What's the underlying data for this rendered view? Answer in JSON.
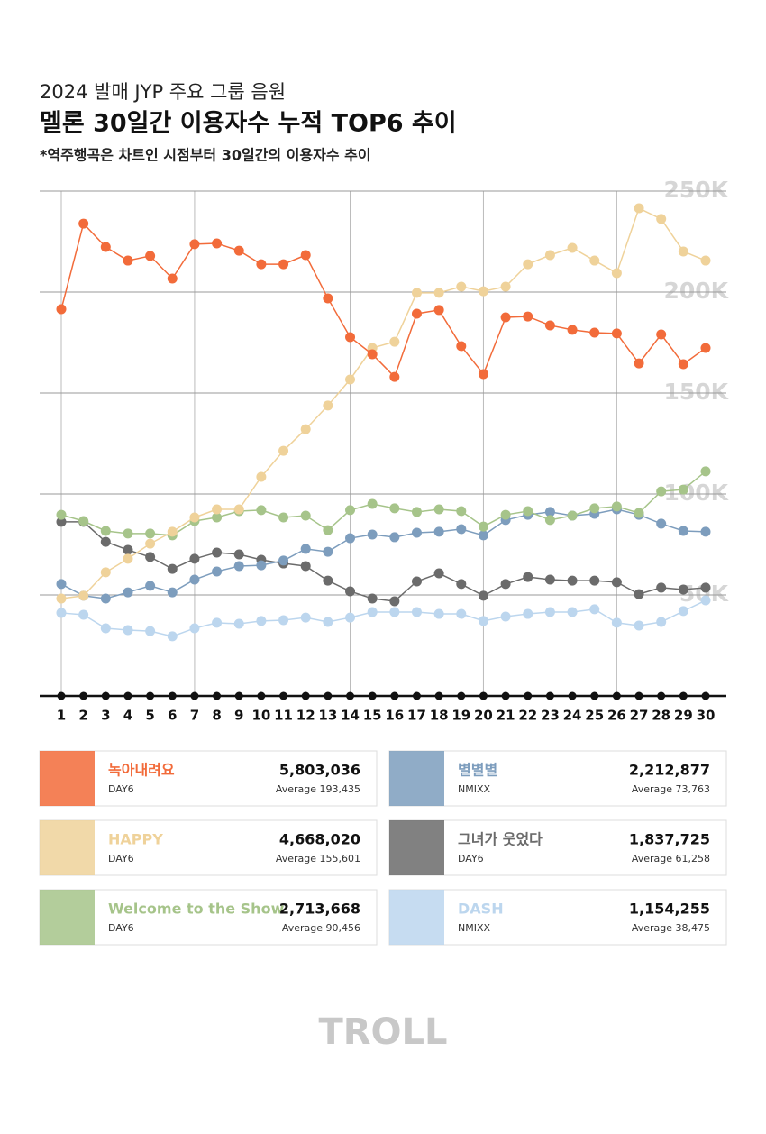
{
  "chart_data": {
    "type": "line",
    "pretitle": "2024 발매 JYP 주요 그룹 음원",
    "title": "멜론 30일간 이용자수 누적 TOP6 추이",
    "subtitle": "*역주행곡은 차트인 시점부터 30일간의 이용자수 추이",
    "x": [
      1,
      2,
      3,
      4,
      5,
      6,
      7,
      8,
      9,
      10,
      11,
      12,
      13,
      14,
      15,
      16,
      17,
      18,
      19,
      20,
      21,
      22,
      23,
      24,
      25,
      26,
      27,
      28,
      29,
      30
    ],
    "xlim": [
      1,
      30
    ],
    "ylim": [
      0,
      250
    ],
    "yticks": [
      {
        "value": 50,
        "label": "50K"
      },
      {
        "value": 100,
        "label": "100K"
      },
      {
        "value": 150,
        "label": "150K"
      },
      {
        "value": 200,
        "label": "200K"
      },
      {
        "value": 250,
        "label": "250K"
      }
    ],
    "grid": true,
    "series": [
      {
        "name": "녹아내려요",
        "artist": "DAY6",
        "total": "5,803,036",
        "average": "Average 193,435",
        "color": "#f26b3a",
        "values": [
          191.5,
          233.9,
          222.3,
          215.6,
          217.9,
          206.7,
          223.7,
          224.1,
          220.5,
          213.8,
          213.8,
          218.3,
          196.9,
          177.7,
          169.2,
          158.0,
          189.3,
          191.1,
          173.2,
          159.4,
          187.5,
          187.9,
          183.5,
          181.3,
          179.9,
          179.5,
          164.7,
          179.0,
          164.3,
          172.3
        ]
      },
      {
        "name": "HAPPY",
        "artist": "DAY6",
        "total": "4,668,020",
        "average": "Average 155,601",
        "color": "#efd29a",
        "values": [
          48.2,
          49.6,
          61.2,
          67.9,
          75.4,
          81.3,
          88.4,
          92.4,
          92.4,
          108.5,
          121.4,
          132.1,
          143.8,
          156.7,
          172.3,
          175.4,
          199.6,
          199.6,
          202.7,
          200.4,
          202.7,
          213.8,
          218.3,
          221.9,
          215.6,
          209.4,
          241.5,
          236.2,
          220.1,
          215.6
        ]
      },
      {
        "name": "Welcome to the Show",
        "artist": "DAY6",
        "total": "2,713,668",
        "average": "Average 90,456",
        "color": "#a6c48a",
        "values": [
          89.7,
          86.6,
          81.7,
          80.4,
          80.4,
          79.5,
          86.6,
          88.4,
          91.5,
          92.0,
          88.4,
          89.3,
          82.1,
          92.0,
          95.1,
          92.9,
          91.1,
          92.4,
          91.5,
          83.9,
          89.7,
          91.5,
          87.1,
          89.3,
          92.9,
          93.8,
          90.6,
          101.3,
          102.2,
          111.2
        ]
      },
      {
        "name": "별별별",
        "artist": "NMIXX",
        "total": "2,212,877",
        "average": "Average 73,763",
        "color": "#7d9dbd",
        "values": [
          55.4,
          49.6,
          48.2,
          51.3,
          54.5,
          51.3,
          57.6,
          61.6,
          64.3,
          64.7,
          67.0,
          72.8,
          71.4,
          78.1,
          79.9,
          78.6,
          80.8,
          81.3,
          82.6,
          79.5,
          87.1,
          89.7,
          91.1,
          89.3,
          90.2,
          92.4,
          89.7,
          85.3,
          81.7,
          81.3
        ]
      },
      {
        "name": "그녀가 웃었다",
        "artist": "DAY6",
        "total": "1,837,725",
        "average": "Average 61,258",
        "color": "#6b6b6b",
        "values": [
          86.2,
          86.2,
          76.3,
          72.3,
          68.8,
          62.9,
          67.9,
          71.0,
          70.1,
          67.4,
          65.6,
          64.3,
          57.1,
          51.8,
          48.2,
          46.9,
          56.7,
          60.7,
          55.4,
          49.6,
          55.4,
          58.9,
          57.6,
          57.1,
          57.1,
          56.3,
          50.4,
          53.6,
          52.7,
          53.6
        ]
      },
      {
        "name": "DASH",
        "artist": "NMIXX",
        "total": "1,154,255",
        "average": "Average 38,475",
        "color": "#bcd6ee",
        "values": [
          41.1,
          40.2,
          33.5,
          32.6,
          32.1,
          29.5,
          33.5,
          36.2,
          35.7,
          37.1,
          37.5,
          38.8,
          36.6,
          38.8,
          41.5,
          41.5,
          41.5,
          40.6,
          40.6,
          37.1,
          39.3,
          40.6,
          41.5,
          41.5,
          42.9,
          36.2,
          34.8,
          36.6,
          42.0,
          47.3
        ]
      }
    ]
  },
  "footer": "TROLL"
}
